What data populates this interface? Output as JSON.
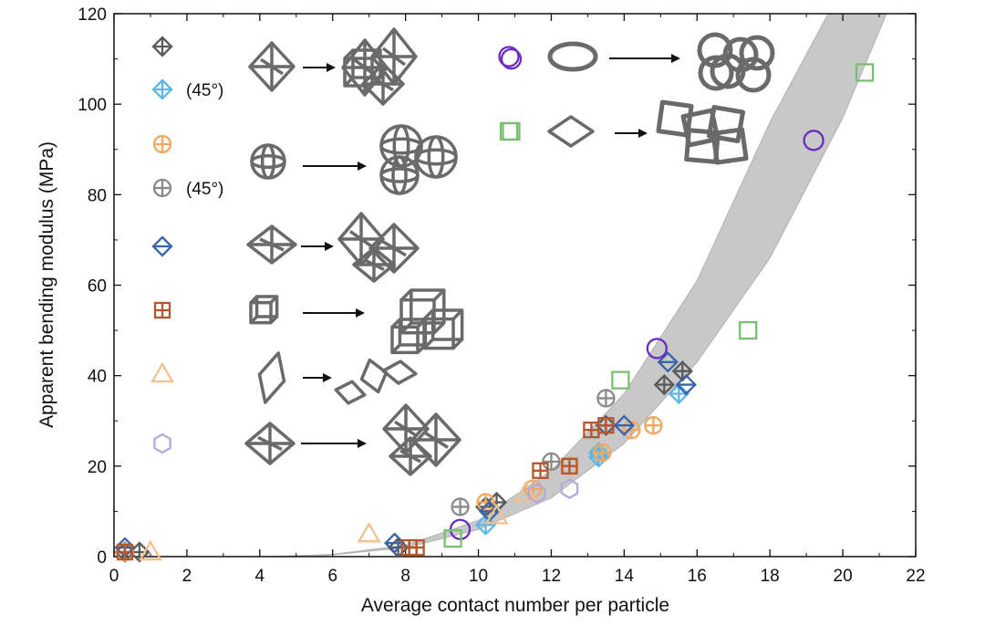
{
  "chart_data": {
    "type": "scatter",
    "xlabel": "Average contact number per particle",
    "ylabel": "Apparent bending modulus (MPa)",
    "xlim": [
      0,
      22
    ],
    "ylim": [
      0,
      120
    ],
    "x_ticks": [
      "0",
      "2",
      "4",
      "6",
      "8",
      "10",
      "12",
      "14",
      "16",
      "18",
      "20",
      "22"
    ],
    "y_ticks": [
      "0",
      "20",
      "40",
      "60",
      "80",
      "100",
      "120"
    ],
    "grid": false,
    "legend_position": "top-left",
    "trend_band": {
      "color": "#c8c8c8",
      "lower": [
        [
          5.5,
          0
        ],
        [
          8,
          2
        ],
        [
          10,
          6
        ],
        [
          12,
          13
        ],
        [
          14,
          25
        ],
        [
          16,
          43
        ],
        [
          18,
          66
        ],
        [
          20,
          97
        ],
        [
          21.2,
          120
        ]
      ],
      "upper": [
        [
          4.3,
          0
        ],
        [
          6,
          0.5
        ],
        [
          8,
          2.5
        ],
        [
          10,
          8
        ],
        [
          12,
          19
        ],
        [
          14,
          36
        ],
        [
          16,
          61
        ],
        [
          18,
          96
        ],
        [
          19.6,
          120
        ]
      ]
    },
    "series": [
      {
        "label": "",
        "marker": "diamond-cross",
        "color": "#5a5a5a",
        "x": [
          0.3,
          0.7,
          7.8,
          10.2,
          10.5,
          13.5,
          15.1,
          15.6
        ],
        "y": [
          1,
          1,
          2,
          11,
          12,
          29,
          38,
          41
        ]
      },
      {
        "label": "(45°)",
        "marker": "diamond-cross",
        "color": "#5eb6e8",
        "x": [
          10.2,
          13.3,
          13.3,
          15.5
        ],
        "y": [
          7,
          22,
          23,
          36
        ]
      },
      {
        "label": "",
        "marker": "circle-plus",
        "color": "#f0a860",
        "x": [
          0.3,
          10.2,
          11.5,
          12.5,
          13.4,
          14.2,
          14.8
        ],
        "y": [
          1,
          12,
          15,
          20,
          23,
          28,
          29
        ]
      },
      {
        "label": "(45°)",
        "marker": "circle-plus",
        "color": "#8a8a8a",
        "x": [
          9.5,
          12.0,
          13.5
        ],
        "y": [
          11,
          21,
          35
        ]
      },
      {
        "label": "",
        "marker": "diamond-line",
        "color": "#3a64a8",
        "x": [
          0.3,
          7.7,
          10.3,
          14.0,
          15.2,
          15.7
        ],
        "y": [
          2,
          3,
          10,
          29,
          43,
          38
        ]
      },
      {
        "label": "",
        "marker": "square-plus",
        "color": "#b4562e",
        "x": [
          0.3,
          8.1,
          8.3,
          11.7,
          12.5,
          13.1,
          13.5
        ],
        "y": [
          1,
          2,
          2,
          19,
          20,
          28,
          29
        ]
      },
      {
        "label": "",
        "marker": "triangle",
        "color": "#f2c08c",
        "x": [
          1.0,
          7.0,
          10.5,
          11.3
        ],
        "y": [
          1,
          5,
          9,
          14
        ]
      },
      {
        "label": "",
        "marker": "hexagon",
        "color": "#b7a8d8",
        "x": [
          11.6,
          12.5
        ],
        "y": [
          14,
          15
        ]
      },
      {
        "label": "",
        "marker": "circle",
        "color": "#6a2cc0",
        "x": [
          9.5,
          14.9,
          19.2,
          10.9
        ],
        "y": [
          6,
          46,
          92,
          110
        ]
      },
      {
        "label": "",
        "marker": "square",
        "color": "#78c070",
        "x": [
          9.3,
          13.9,
          17.4,
          20.6,
          10.9
        ],
        "y": [
          4,
          39,
          50,
          107,
          94
        ]
      }
    ],
    "legend": {
      "items": [
        {
          "series": 0,
          "label": ""
        },
        {
          "series": 1,
          "label": "(45°)"
        },
        {
          "series": 2,
          "label": ""
        },
        {
          "series": 3,
          "label": "(45°)"
        },
        {
          "series": 4,
          "label": ""
        },
        {
          "series": 5,
          "label": ""
        },
        {
          "series": 6,
          "label": ""
        },
        {
          "series": 7,
          "label": ""
        }
      ],
      "upper_items": [
        {
          "series": 8,
          "label": ""
        },
        {
          "series": 9,
          "label": ""
        }
      ]
    },
    "inset_icons": [
      {
        "name": "octahedron",
        "cluster": true
      },
      {
        "name": "sphere-frame",
        "cluster": true
      },
      {
        "name": "octahedron-flat",
        "cluster": true
      },
      {
        "name": "cube-frame",
        "cluster": true
      },
      {
        "name": "rhombus-frame",
        "cluster": true
      },
      {
        "name": "octahedron-small",
        "cluster": true
      },
      {
        "name": "torus",
        "cluster": true
      },
      {
        "name": "square-ring",
        "cluster": true
      }
    ]
  }
}
